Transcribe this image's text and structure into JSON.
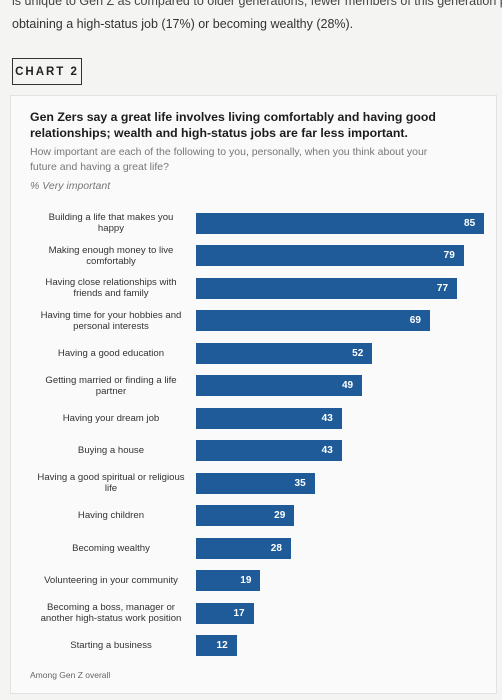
{
  "intro": [
    "is unique to Gen Z as compared to older generations, fewer members of this generation pri",
    "obtaining a high-status job (17%) or becoming wealthy (28%)."
  ],
  "chart_label": "CHART 2",
  "chart_data": {
    "type": "bar",
    "orientation": "horizontal",
    "title": "Gen Zers say a great life involves living comfortably and having good relationships; wealth and high-status jobs are far less important.",
    "subtitle": "How important are each of the following to you, personally, when you think about your future and having a great life?",
    "unit_label": "% Very important",
    "categories": [
      "Building a life that makes you happy",
      "Making enough money to live comfortably",
      "Having close relationships with friends and family",
      "Having time for your hobbies and personal interests",
      "Having a good education",
      "Getting married or finding a life partner",
      "Having your dream job",
      "Buying a house",
      "Having a good spiritual or religious life",
      "Having children",
      "Becoming wealthy",
      "Volunteering in your community",
      "Becoming a boss, manager or another high-status work position",
      "Starting a business"
    ],
    "values": [
      85,
      79,
      77,
      69,
      52,
      49,
      43,
      43,
      35,
      29,
      28,
      19,
      17,
      12
    ],
    "color": "#1f5b98",
    "note": "Among Gen Z overall"
  }
}
